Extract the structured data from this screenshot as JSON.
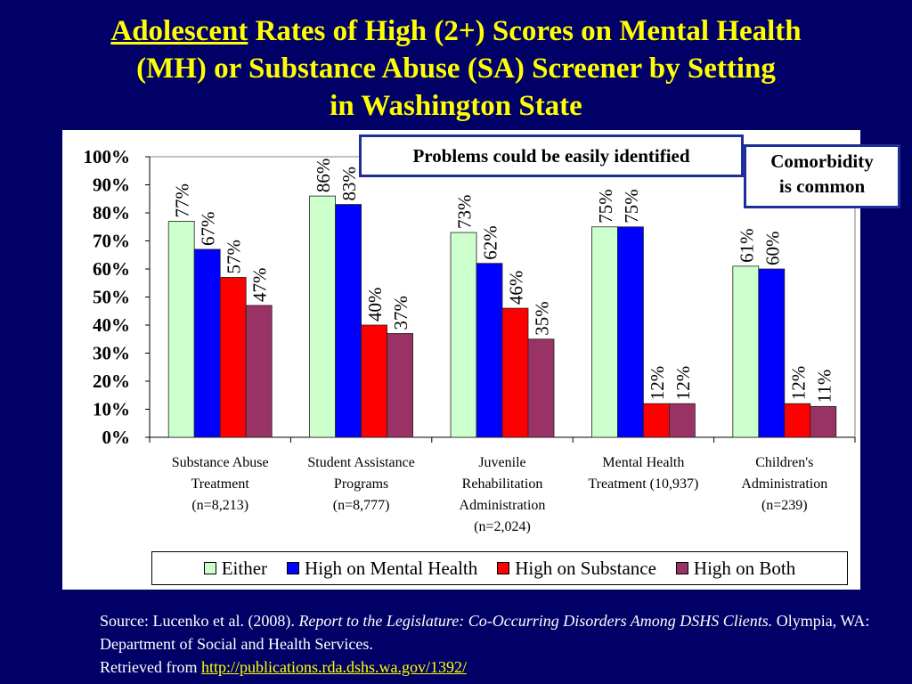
{
  "title": {
    "underlined": "Adolescent",
    "line1_rest": " Rates of High (2+) Scores on Mental Health",
    "line2": "(MH) or Substance Abuse (SA) Screener by Setting",
    "line3": "in Washington State"
  },
  "callouts": {
    "problems": "Problems could be easily identified",
    "comorbidity_line1": "Comorbidity",
    "comorbidity_line2": "is common"
  },
  "source": {
    "prefix": "Source: Lucenko et al. (2008). ",
    "title_italic": "Report to the Legislature: Co-Occurring Disorders Among DSHS Clients.",
    "suffix": " Olympia, WA: Department of Social and Health Services.",
    "retrieved": "Retrieved from ",
    "link": "http://publications.rda.dshs.wa.gov/1392/"
  },
  "colors": {
    "background": "#000066",
    "title": "#ffff00",
    "either": "#ccffcc",
    "mental_health": "#0000ff",
    "substance": "#ff0000",
    "both": "#993366"
  },
  "chart_data": {
    "type": "bar",
    "ylim": [
      0,
      100
    ],
    "yticks": [
      "0%",
      "10%",
      "20%",
      "30%",
      "40%",
      "50%",
      "60%",
      "70%",
      "80%",
      "90%",
      "100%"
    ],
    "categories": [
      [
        "Substance Abuse",
        "Treatment",
        "(n=8,213)"
      ],
      [
        "Student Assistance",
        "Programs",
        "(n=8,777)"
      ],
      [
        "Juvenile",
        "Rehabilitation",
        "Administration",
        "(n=2,024)"
      ],
      [
        "Mental Health",
        "Treatment (10,937)"
      ],
      [
        "Children's",
        "Administration",
        "(n=239)"
      ]
    ],
    "series": [
      {
        "name": "Either",
        "color": "#ccffcc",
        "values": [
          77,
          86,
          73,
          75,
          61
        ],
        "labels": [
          "77%",
          "86%",
          "73%",
          "75%",
          "61%"
        ]
      },
      {
        "name": "High on Mental Health",
        "color": "#0000ff",
        "values": [
          67,
          83,
          62,
          75,
          60
        ],
        "labels": [
          "67%",
          "83%",
          "62%",
          "75%",
          "60%"
        ]
      },
      {
        "name": "High on Substance",
        "color": "#ff0000",
        "values": [
          57,
          40,
          46,
          12,
          12
        ],
        "labels": [
          "57%",
          "40%",
          "46%",
          "12%",
          "12%"
        ]
      },
      {
        "name": "High on Both",
        "color": "#993366",
        "values": [
          47,
          37,
          35,
          12,
          11
        ],
        "labels": [
          "47%",
          "37%",
          "35%",
          "12%",
          "11%"
        ]
      }
    ],
    "legend_position": "bottom"
  }
}
